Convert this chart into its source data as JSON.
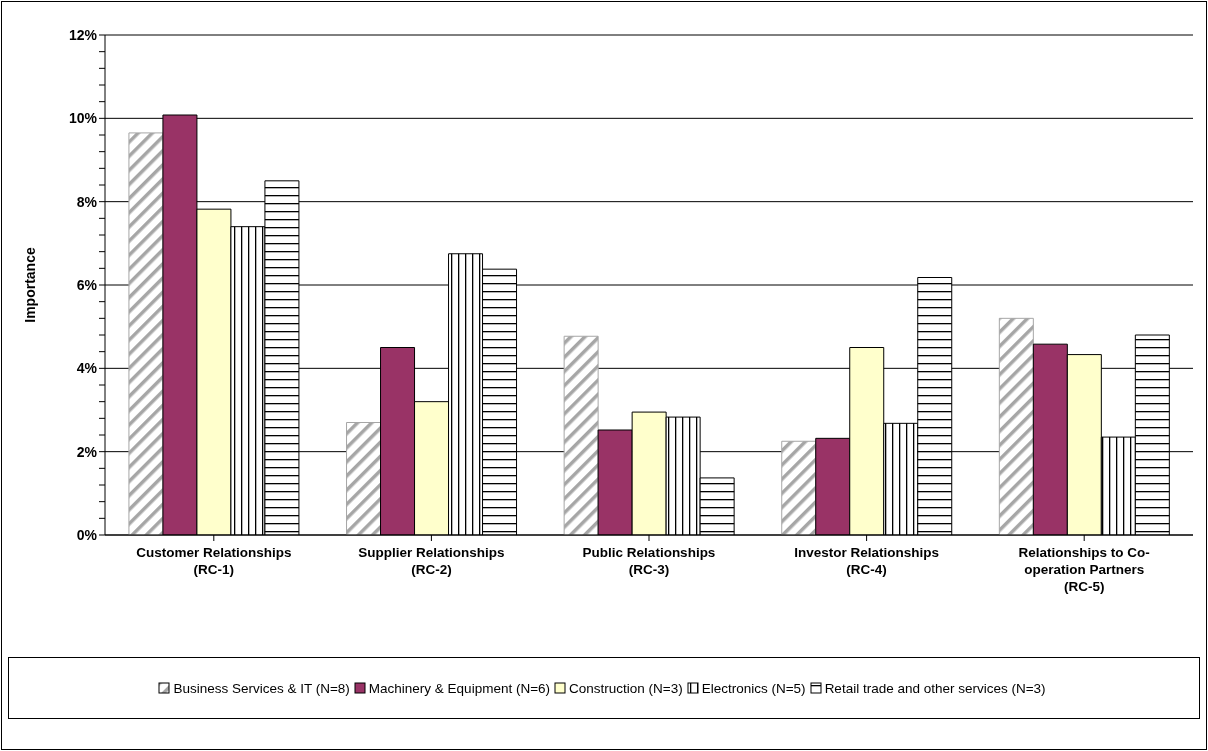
{
  "chart_data": {
    "type": "bar",
    "ylabel": "Importance",
    "categories": [
      "Customer Relationships (RC-1)",
      "Supplier Relationships (RC-2)",
      "Public Relationships (RC-3)",
      "Investor Relationships (RC-4)",
      "Relationships to Co-operation Partners (RC-5)"
    ],
    "series": [
      {
        "name": "Business Services & IT (N=8)",
        "color": "#a6a6a6",
        "values": [
          9.65,
          2.7,
          4.77,
          2.25,
          5.2
        ]
      },
      {
        "name": "Machinery & Equipment (N=6)",
        "color": "#993366",
        "values": [
          10.08,
          4.5,
          2.52,
          2.32,
          4.58
        ]
      },
      {
        "name": "Construction (N=3)",
        "color": "#ffffcc",
        "values": [
          7.82,
          3.2,
          2.95,
          4.5,
          4.33
        ]
      },
      {
        "name": "Electronics (N=5)",
        "color": "#000000",
        "values": [
          7.4,
          6.75,
          2.83,
          2.68,
          2.35
        ]
      },
      {
        "name": "Retail trade and other services (N=3)",
        "color": "#000000",
        "values": [
          8.5,
          6.38,
          1.37,
          6.18,
          4.8
        ]
      }
    ],
    "ylim": [
      0,
      12
    ],
    "yticks": [
      {
        "value": 0,
        "label": "0%"
      },
      {
        "value": 0.4,
        "label": null
      },
      {
        "value": 0.8,
        "label": null
      },
      {
        "value": 1.2,
        "label": null
      },
      {
        "value": 1.6,
        "label": null
      },
      {
        "value": 2,
        "label": "2%"
      },
      {
        "value": 2.4,
        "label": null
      },
      {
        "value": 2.8,
        "label": null
      },
      {
        "value": 3.2,
        "label": null
      },
      {
        "value": 3.6,
        "label": null
      },
      {
        "value": 4,
        "label": "4%"
      },
      {
        "value": 4.4,
        "label": null
      },
      {
        "value": 4.8,
        "label": null
      },
      {
        "value": 5.2,
        "label": null
      },
      {
        "value": 5.6,
        "label": null
      },
      {
        "value": 6,
        "label": "6%"
      },
      {
        "value": 6.4,
        "label": null
      },
      {
        "value": 6.8,
        "label": null
      },
      {
        "value": 7.2,
        "label": null
      },
      {
        "value": 7.6,
        "label": null
      },
      {
        "value": 8,
        "label": "8%"
      },
      {
        "value": 8.4,
        "label": null
      },
      {
        "value": 8.8,
        "label": null
      },
      {
        "value": 9.2,
        "label": null
      },
      {
        "value": 9.6,
        "label": null
      },
      {
        "value": 10,
        "label": "10%"
      },
      {
        "value": 10.4,
        "label": null
      },
      {
        "value": 10.8,
        "label": null
      },
      {
        "value": 11.2,
        "label": null
      },
      {
        "value": 11.6,
        "label": null
      },
      {
        "value": 12,
        "label": "12%"
      }
    ],
    "grid": "y",
    "legend": "bottom"
  }
}
